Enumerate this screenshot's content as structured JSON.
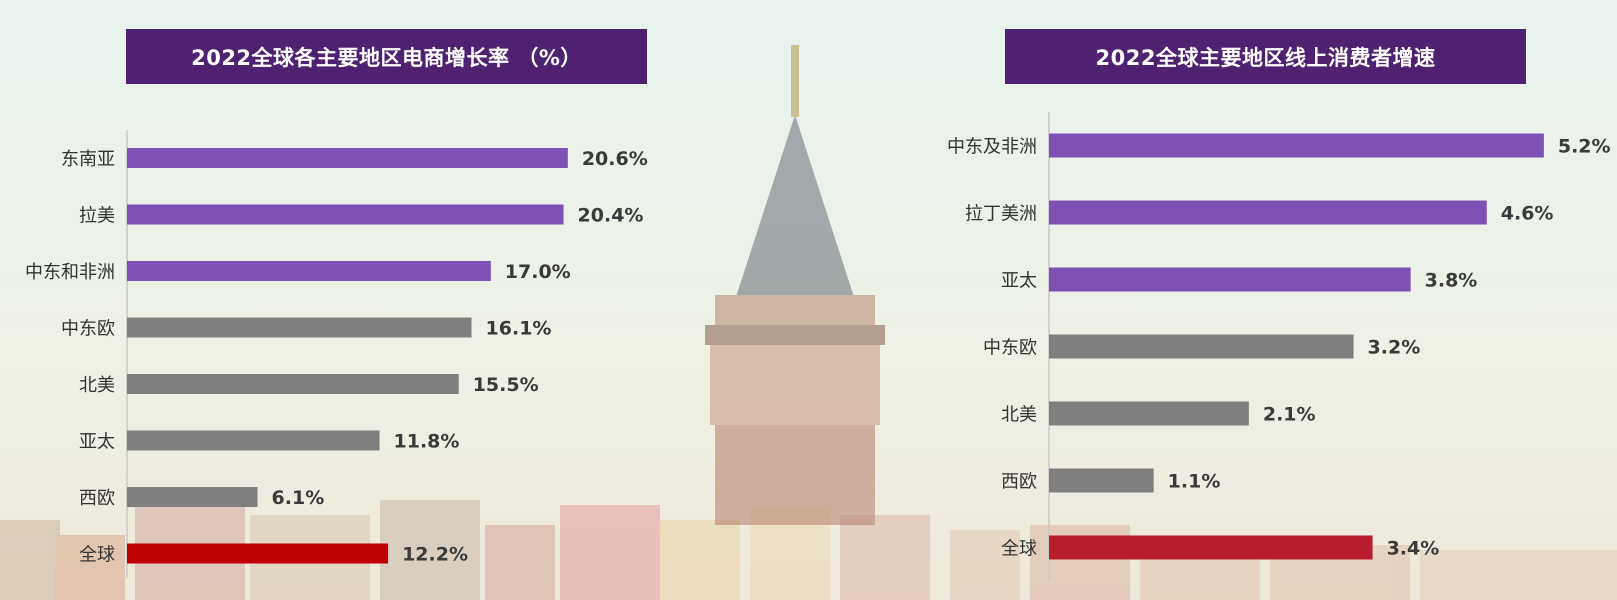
{
  "colors": {
    "title_bg": "#4e2270",
    "bar_highlight": "#7e52b5",
    "bar_normal": "#7f7f7f",
    "bar_total_left": "#c00000",
    "bar_total_right": "#b71c2f"
  },
  "chart_data": [
    {
      "type": "bar",
      "orientation": "horizontal",
      "title": "2022全球各主要地区电商增长率 （%）",
      "categories": [
        "东南亚",
        "拉美",
        "中东和非洲",
        "中东欧",
        "北美",
        "亚太",
        "西欧",
        "全球"
      ],
      "values": [
        20.6,
        20.4,
        17.0,
        16.1,
        15.5,
        11.8,
        6.1,
        12.2
      ],
      "value_labels": [
        "20.6%",
        "20.4%",
        "17.0%",
        "16.1%",
        "15.5%",
        "11.8%",
        "6.1%",
        "12.2%"
      ],
      "bar_colors": [
        "#7e52b5",
        "#7e52b5",
        "#7e52b5",
        "#7f7f7f",
        "#7f7f7f",
        "#7f7f7f",
        "#7f7f7f",
        "#c00000"
      ],
      "xlim": [
        0,
        25
      ],
      "grid": false,
      "legend": "none"
    },
    {
      "type": "bar",
      "orientation": "horizontal",
      "title": "2022全球主要地区线上消费者增速",
      "categories": [
        "中东及非洲",
        "拉丁美洲",
        "亚太",
        "中东欧",
        "北美",
        "西欧",
        "全球"
      ],
      "values": [
        5.2,
        4.6,
        3.8,
        3.2,
        2.1,
        1.1,
        3.4
      ],
      "value_labels": [
        "5.2%",
        "4.6%",
        "3.8%",
        "3.2%",
        "2.1%",
        "1.1%",
        "3.4%"
      ],
      "bar_colors": [
        "#7e52b5",
        "#7e52b5",
        "#7e52b5",
        "#7f7f7f",
        "#7f7f7f",
        "#7f7f7f",
        "#b71c2f"
      ],
      "xlim": [
        0,
        6
      ],
      "grid": false,
      "legend": "none"
    }
  ]
}
